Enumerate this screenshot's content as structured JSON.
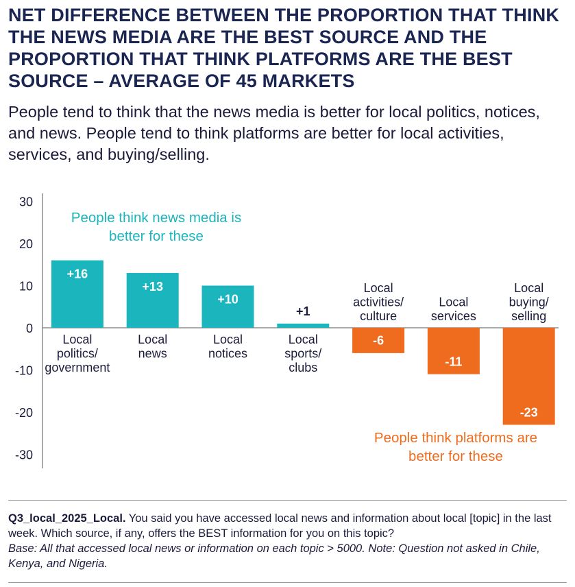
{
  "title": "NET DIFFERENCE BETWEEN THE PROPORTION THAT THINK THE NEWS MEDIA ARE THE BEST SOURCE AND THE PROPORTION THAT THINK PLATFORMS ARE THE BEST SOURCE – AVERAGE OF 45 MARKETS",
  "subtitle": "People tend to think that the news media is better for local politics, notices, and news. People tend to think platforms are better for local activities, services, and buying/selling.",
  "colors": {
    "positive": "#1bb5bd",
    "negative": "#ef6c1f",
    "text": "#1a1a3a",
    "axis": "#555555"
  },
  "chart_data": {
    "type": "bar",
    "categories": [
      [
        "Local",
        "politics/",
        "government"
      ],
      [
        "Local",
        "news"
      ],
      [
        "Local",
        "notices"
      ],
      [
        "Local",
        "sports/",
        "clubs"
      ],
      [
        "Local",
        "activities/",
        "culture"
      ],
      [
        "Local",
        "services"
      ],
      [
        "Local",
        "buying/",
        "selling"
      ]
    ],
    "values": [
      16,
      13,
      10,
      1,
      -6,
      -11,
      -23
    ],
    "value_labels": [
      "+16",
      "+13",
      "+10",
      "+1",
      "-6",
      "-11",
      "-23"
    ],
    "ylim": [
      -30,
      30
    ],
    "yticks": [
      30,
      20,
      10,
      0,
      -10,
      -20,
      -30
    ],
    "ytick_labels": [
      "30",
      "20",
      "10",
      "0",
      "-10",
      "-20",
      "-30"
    ],
    "annotations": {
      "positive": [
        "People think news media is",
        "better for these"
      ],
      "negative": [
        "People think platforms are",
        "better for these"
      ]
    },
    "xlabel": "",
    "ylabel": ""
  },
  "footer": {
    "question_id": "Q3_local_2025_Local.",
    "question": " You said you have accessed local news and information about local [topic] in the last week. Which source, if any, offers the BEST information for you on this topic?",
    "base": "Base: All that accessed local news or information on each topic > 5000. Note: Question not asked in Chile, Kenya, and Nigeria."
  }
}
